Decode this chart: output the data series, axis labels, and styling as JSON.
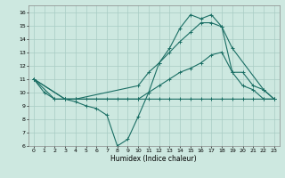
{
  "bg_color": "#cde8e0",
  "grid_color": "#a8ccc4",
  "line_color": "#1a6e64",
  "xlabel": "Humidex (Indice chaleur)",
  "xlim": [
    -0.5,
    23.5
  ],
  "ylim": [
    6,
    16.5
  ],
  "xticks": [
    0,
    1,
    2,
    3,
    4,
    5,
    6,
    7,
    8,
    9,
    10,
    11,
    12,
    13,
    14,
    15,
    16,
    17,
    18,
    19,
    20,
    21,
    22,
    23
  ],
  "yticks": [
    6,
    7,
    8,
    9,
    10,
    11,
    12,
    13,
    14,
    15,
    16
  ],
  "lines": [
    {
      "x": [
        0,
        1,
        2,
        3,
        4,
        5,
        6,
        7,
        8,
        9,
        10,
        11,
        12,
        13,
        14,
        15,
        16,
        17,
        18,
        19,
        20,
        21,
        22,
        23
      ],
      "y": [
        11,
        10,
        9.5,
        9.5,
        9.5,
        9.5,
        9.5,
        9.5,
        9.5,
        9.5,
        9.5,
        9.5,
        9.5,
        9.5,
        9.5,
        9.5,
        9.5,
        9.5,
        9.5,
        9.5,
        9.5,
        9.5,
        9.5,
        9.5
      ]
    },
    {
      "x": [
        0,
        2,
        3,
        4,
        5,
        6,
        7,
        8,
        9,
        10,
        11,
        12,
        13,
        14,
        15,
        16,
        17,
        18,
        19,
        20,
        21,
        22,
        23
      ],
      "y": [
        11,
        9.5,
        9.5,
        9.3,
        9.0,
        8.8,
        8.3,
        6.0,
        6.5,
        8.2,
        10.0,
        12.2,
        13.3,
        14.8,
        15.8,
        15.5,
        15.8,
        14.9,
        11.5,
        10.5,
        10.2,
        9.5,
        9.5
      ]
    },
    {
      "x": [
        0,
        3,
        4,
        10,
        11,
        12,
        13,
        14,
        15,
        16,
        17,
        18,
        19,
        22,
        23
      ],
      "y": [
        11,
        9.5,
        9.5,
        10.5,
        11.5,
        12.2,
        13.0,
        13.8,
        14.5,
        15.2,
        15.2,
        14.9,
        13.3,
        10.2,
        9.5
      ]
    },
    {
      "x": [
        0,
        3,
        4,
        10,
        11,
        12,
        13,
        14,
        15,
        16,
        17,
        18,
        19,
        20,
        21,
        22,
        23
      ],
      "y": [
        11,
        9.5,
        9.5,
        9.5,
        10.0,
        10.5,
        11.0,
        11.5,
        11.8,
        12.2,
        12.8,
        13.0,
        11.5,
        11.5,
        10.5,
        10.2,
        9.5
      ]
    }
  ]
}
